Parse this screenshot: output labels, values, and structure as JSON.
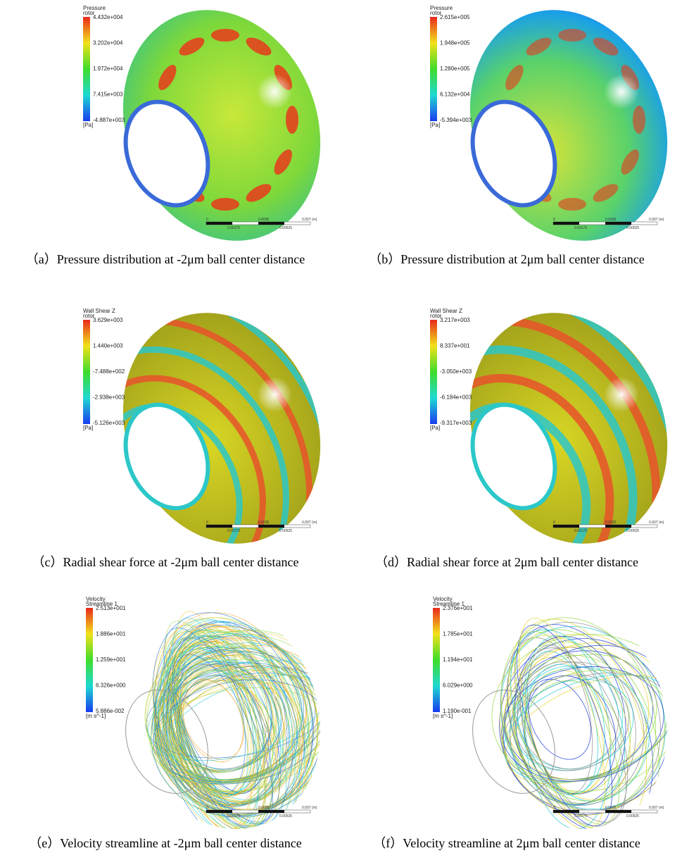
{
  "panels": [
    {
      "caption": "（a）Pressure distribution at -2μm ball center distance",
      "legend": {
        "title": "Pressure",
        "subtitle": "rotor",
        "ticks": [
          "4.432e+004",
          "3.202e+004",
          "1.972e+004",
          "7.415e+003",
          "-4.887e+003"
        ],
        "unit": "[Pa]"
      },
      "scale": {
        "top": [
          "0",
          "0.0035",
          "0.007 (m)"
        ],
        "bottom": [
          "0.00175",
          "0.00525"
        ]
      }
    },
    {
      "caption": "（b）Pressure distribution at 2μm ball center distance",
      "legend": {
        "title": "Pressure",
        "subtitle": "rotor",
        "ticks": [
          "2.615e+005",
          "1.948e+005",
          "1.280e+005",
          "6.132e+004",
          "-5.394e+003"
        ],
        "unit": "[Pa]"
      },
      "scale": {
        "top": [
          "0",
          "0.0035",
          "0.007 (m)"
        ],
        "bottom": [
          "0.00175",
          "0.00525"
        ]
      }
    },
    {
      "caption": "（c）Radial shear force at -2μm ball center distance",
      "legend": {
        "title": "Wall Shear Z",
        "subtitle": "rotor",
        "ticks": [
          "3.629e+003",
          "1.440e+003",
          "-7.488e+002",
          "-2.938e+003",
          "-5.126e+003"
        ],
        "unit": "[Pa]"
      },
      "scale": {
        "top": [
          "0",
          "0.0035",
          "0.007 (m)"
        ],
        "bottom": [
          "0.00175",
          "0.00525"
        ]
      }
    },
    {
      "caption": "（d）Radial shear force at 2μm ball center distance",
      "legend": {
        "title": "Wall Shear Z",
        "subtitle": "rotor",
        "ticks": [
          "3.217e+003",
          "8.337e+001",
          "-3.050e+003",
          "-6.184e+003",
          "-9.317e+003"
        ],
        "unit": "[Pa]"
      },
      "scale": {
        "top": [
          "0",
          "0.0035",
          "0.007 (m)"
        ],
        "bottom": [
          "0.00175",
          "0.00525"
        ]
      }
    },
    {
      "caption": "（e）Velocity streamline at -2μm ball center distance",
      "legend": {
        "title": "Velocity",
        "subtitle": "Streamline 1",
        "ticks": [
          "2.513e+001",
          "1.886e+001",
          "1.259e+001",
          "6.326e+000",
          "5.886e-002"
        ],
        "unit": "[m s^-1]"
      },
      "scale": {
        "top": [
          "0",
          "0.0035",
          "0.007 (m)"
        ],
        "bottom": [
          "0.00175",
          "0.00525"
        ]
      }
    },
    {
      "caption": "（f）Velocity streamline at 2μm ball center distance",
      "legend": {
        "title": "Velocity",
        "subtitle": "Streamline 1",
        "ticks": [
          "2.376e+001",
          "1.785e+001",
          "1.194e+001",
          "6.029e+000",
          "1.190e-001"
        ],
        "unit": "[m s^-1]"
      },
      "scale": {
        "top": [
          "0",
          "0.0035",
          "0.007 (m)"
        ],
        "bottom": [
          "0.00175",
          "0.00525"
        ]
      }
    }
  ]
}
